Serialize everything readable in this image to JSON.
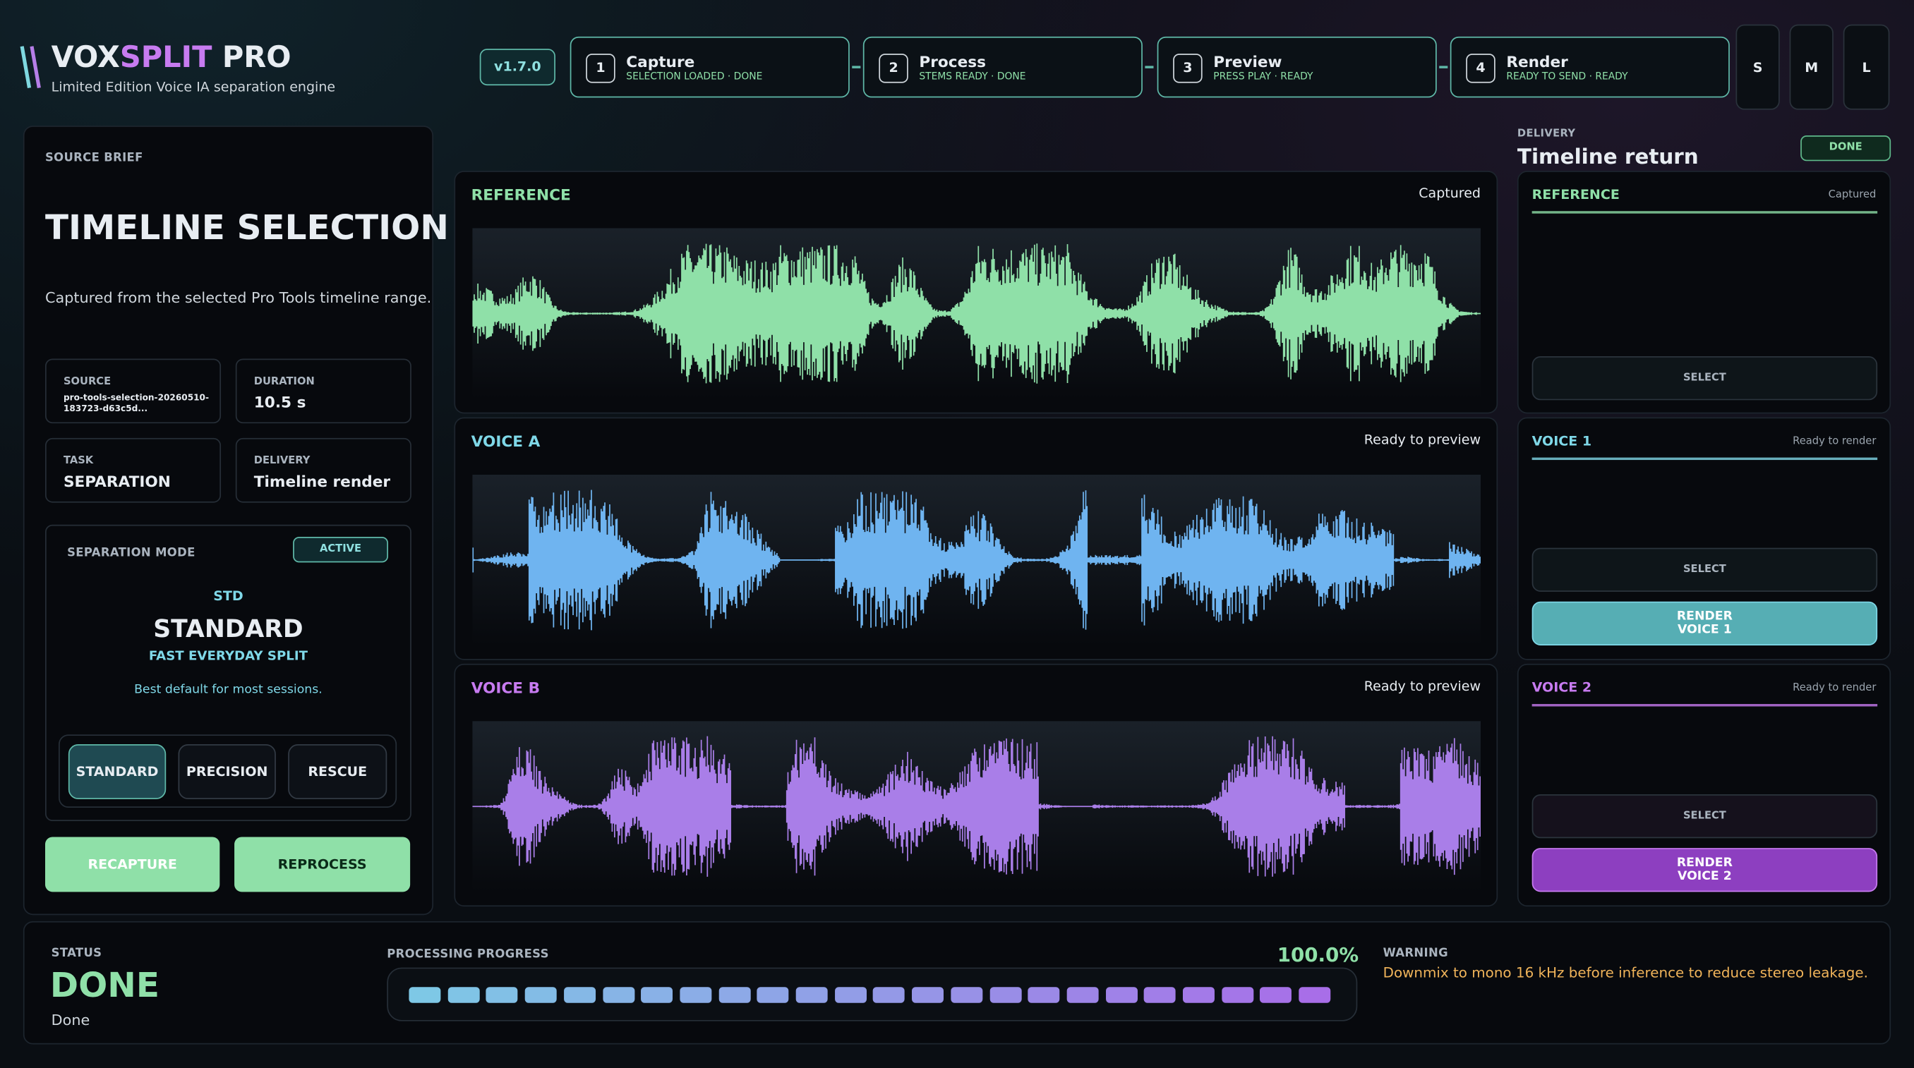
{
  "header": {
    "brand_vox": "VOX",
    "brand_split": "SPLIT",
    "brand_pro": "PRO",
    "tagline": "Limited Edition Voice IA separation engine",
    "version": "v1.7.0",
    "steps": [
      {
        "number": "1",
        "title": "Capture",
        "status": "SELECTION LOADED · DONE"
      },
      {
        "number": "2",
        "title": "Process",
        "status": "STEMS READY · DONE"
      },
      {
        "number": "3",
        "title": "Preview",
        "status": "PRESS PLAY · READY"
      },
      {
        "number": "4",
        "title": "Render",
        "status": "READY TO SEND · READY"
      }
    ],
    "size_buttons": [
      "S",
      "M",
      "L"
    ]
  },
  "source_brief": {
    "label": "SOURCE BRIEF",
    "title": "TIMELINE SELECTION",
    "description": "Captured from the selected Pro Tools timeline range.",
    "fields": [
      {
        "label": "SOURCE",
        "value": "pro-tools-selection-20260510-183723-d63c5d..."
      },
      {
        "label": "DURATION",
        "value": "10.5 s"
      },
      {
        "label": "TASK",
        "value": "SEPARATION"
      },
      {
        "label": "DELIVERY",
        "value": "Timeline render"
      }
    ],
    "mode": {
      "label": "SEPARATION MODE",
      "badge": "ACTIVE",
      "code": "STD",
      "name": "STANDARD",
      "subtitle": "FAST EVERYDAY SPLIT",
      "hint": "Best default for most sessions.",
      "options": [
        "STANDARD",
        "PRECISION",
        "RESCUE"
      ]
    },
    "actions": [
      "RECAPTURE",
      "REPROCESS"
    ]
  },
  "waveforms": [
    {
      "name": "REFERENCE",
      "status": "Captured"
    },
    {
      "name": "VOICE A",
      "status": "Ready to preview"
    },
    {
      "name": "VOICE B",
      "status": "Ready to preview"
    }
  ],
  "delivery": {
    "label": "DELIVERY",
    "title": "Timeline return",
    "badge": "DONE",
    "tracks": [
      {
        "name": "REFERENCE",
        "status": "Captured",
        "select": "SELECT"
      },
      {
        "name": "VOICE 1",
        "status": "Ready to render",
        "select": "SELECT",
        "render": "RENDER VOICE 1"
      },
      {
        "name": "VOICE 2",
        "status": "Ready to render",
        "select": "SELECT",
        "render": "RENDER VOICE 2"
      }
    ]
  },
  "status_bar": {
    "status_label": "STATUS",
    "status": "DONE",
    "status_detail": "Done",
    "progress_label": "PROCESSING PROGRESS",
    "progress": "100.0%",
    "warning_label": "WARNING",
    "warning": "Downmix to mono 16 kHz before inference to reduce stereo leakage."
  }
}
